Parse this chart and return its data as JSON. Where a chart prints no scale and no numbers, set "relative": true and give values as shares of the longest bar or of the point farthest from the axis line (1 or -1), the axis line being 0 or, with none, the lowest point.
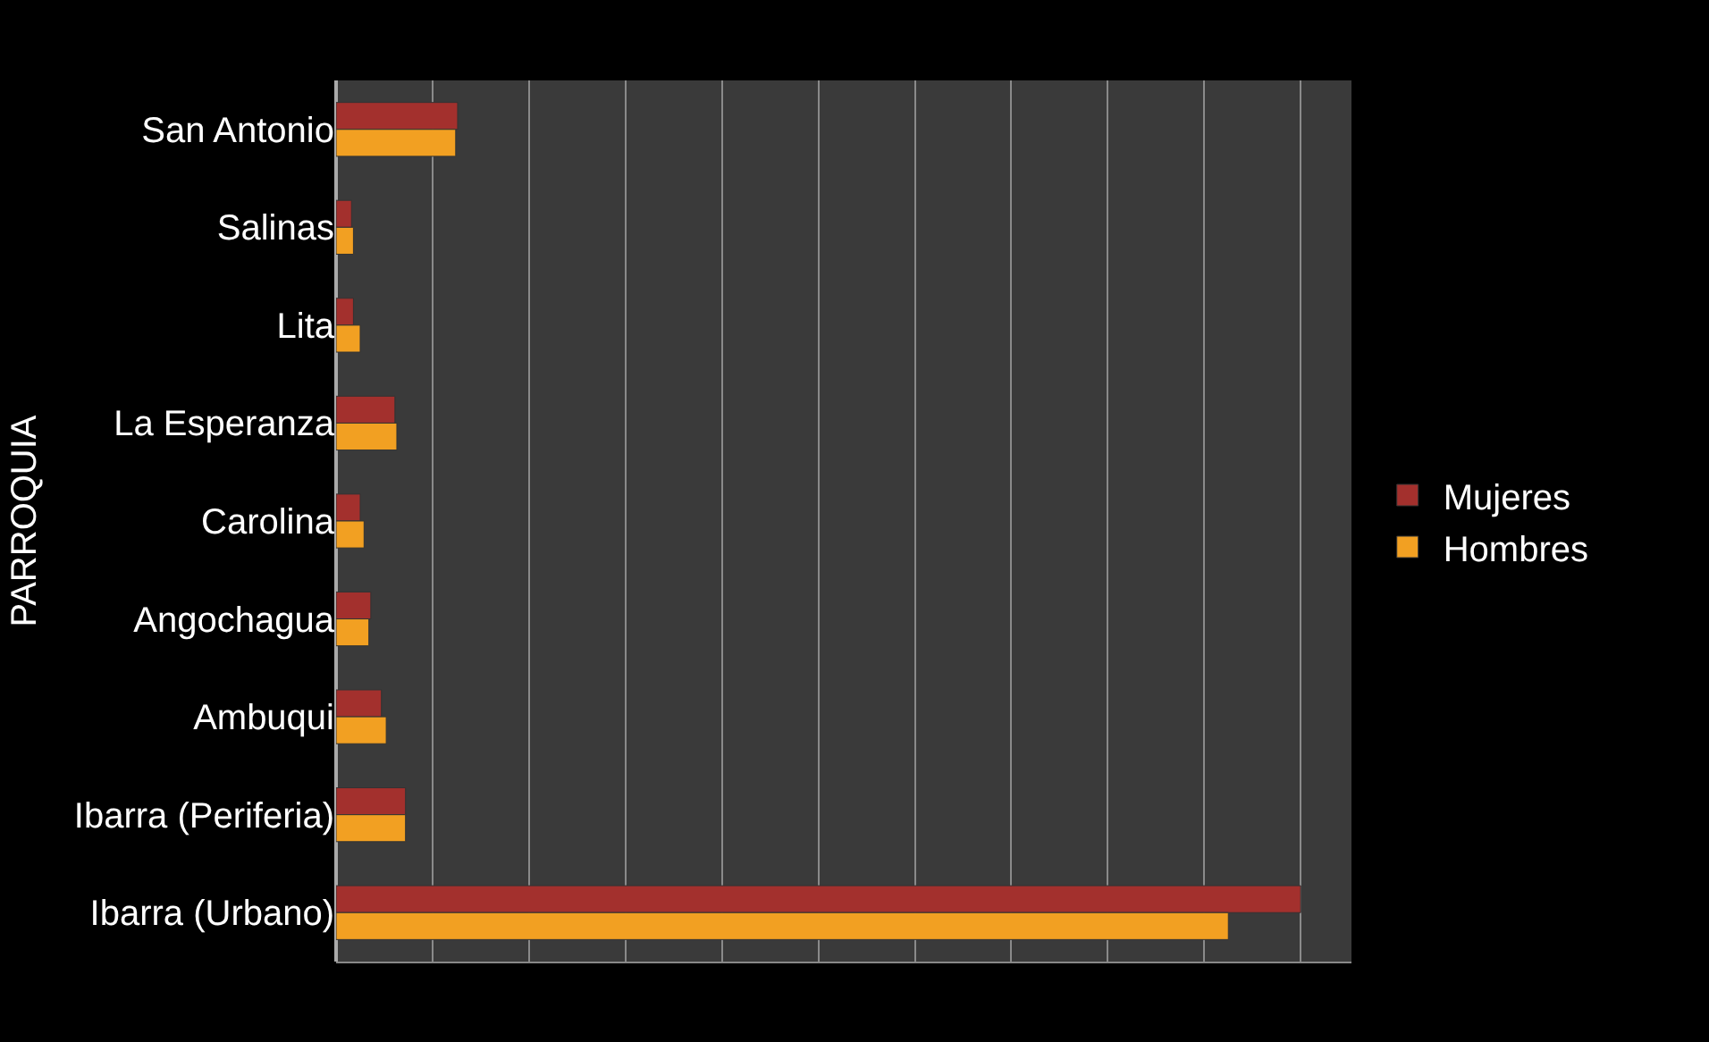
{
  "chart_data": {
    "type": "bar",
    "orientation": "horizontal",
    "relative": true,
    "ylabel": "PARROQUIA",
    "categories": [
      "San Antonio",
      "Salinas",
      "Lita",
      "La Esperanza",
      "Carolina",
      "Angochagua",
      "Ambuqui",
      "Ibarra (Periferia)",
      "Ibarra (Urbano)"
    ],
    "series": [
      {
        "name": "Mujeres",
        "color": "#a3302d",
        "values": [
          0.126,
          0.016,
          0.018,
          0.061,
          0.025,
          0.036,
          0.047,
          0.072,
          1
        ]
      },
      {
        "name": "Hombres",
        "color": "#f2a022",
        "values": [
          0.124,
          0.018,
          0.025,
          0.063,
          0.029,
          0.034,
          0.052,
          0.072,
          0.925
        ]
      }
    ],
    "grid": "x",
    "legend": "right"
  }
}
